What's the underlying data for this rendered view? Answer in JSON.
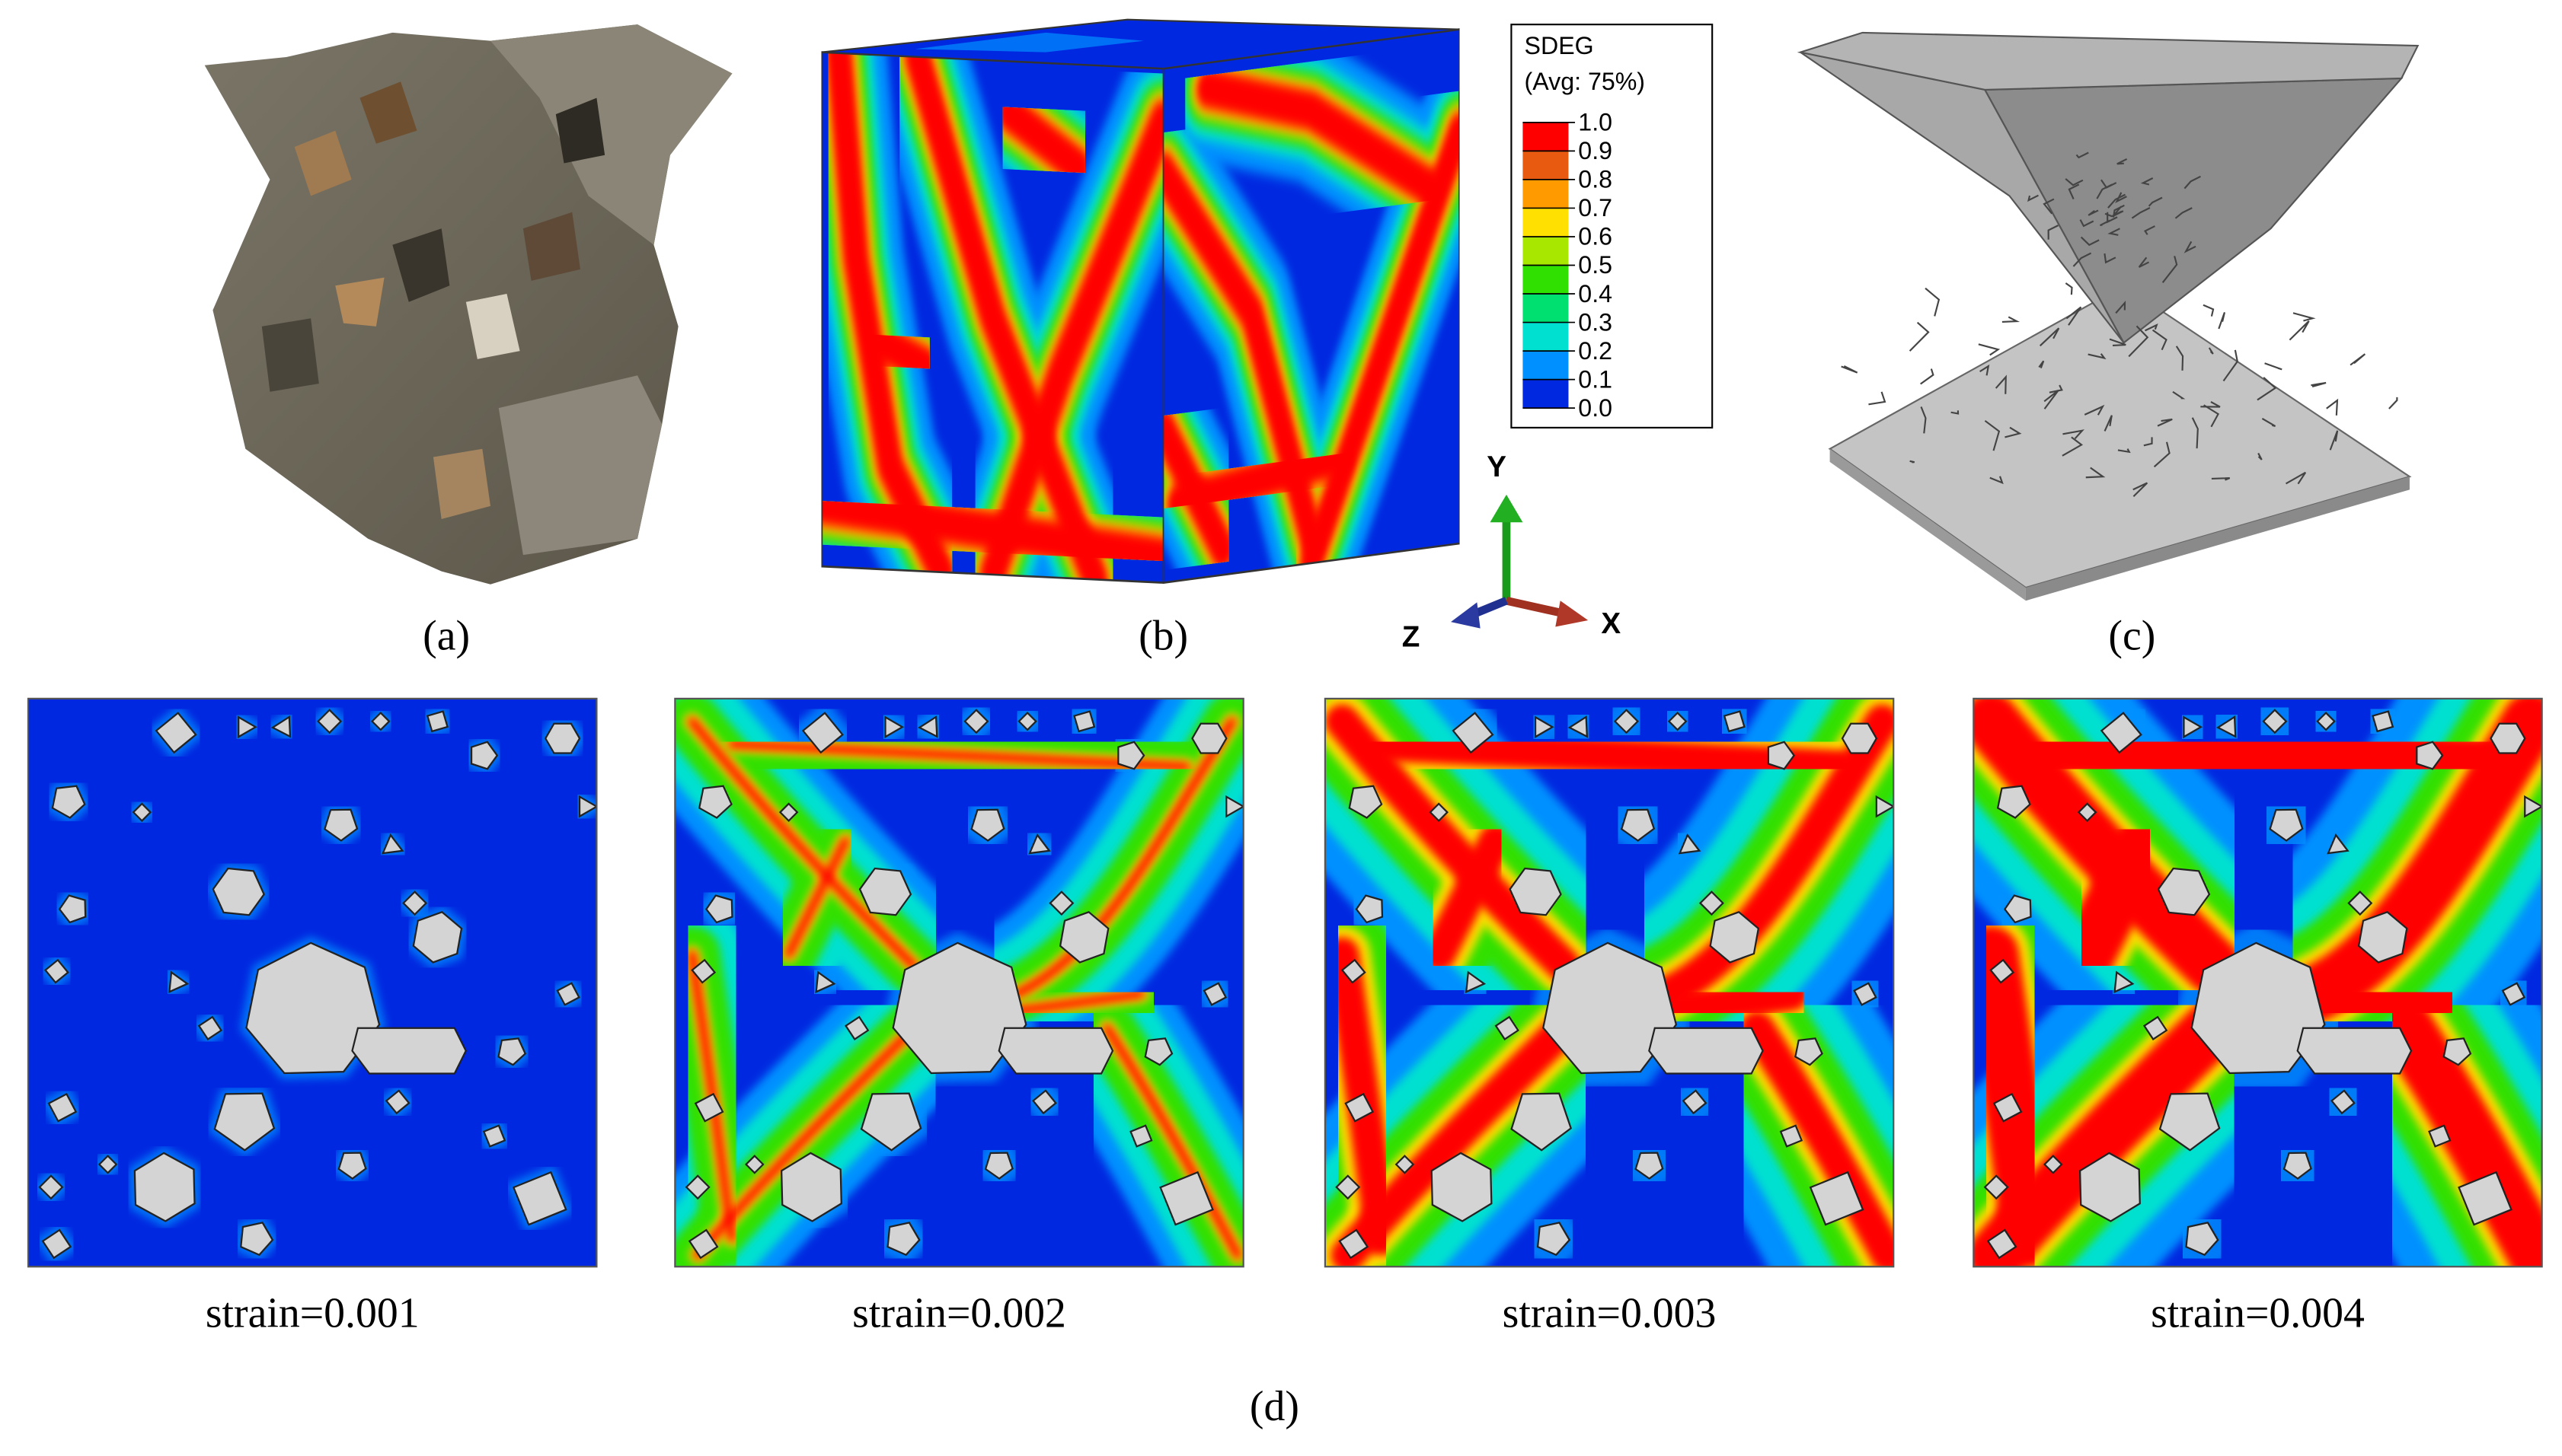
{
  "captions": [
    "(a)",
    "(b)",
    "(c)",
    "(d)"
  ],
  "legend": {
    "title": "SDEG",
    "subtitle": "(Avg: 75%)",
    "labels": [
      "1.0",
      "0.9",
      "0.8",
      "0.7",
      "0.6",
      "0.5",
      "0.4",
      "0.3",
      "0.2",
      "0.1",
      "0.0"
    ],
    "colors": [
      "#ff0000",
      "#e85a10",
      "#ff9a00",
      "#ffe000",
      "#a8e800",
      "#30e000",
      "#00e070",
      "#00e0d0",
      "#0090ff",
      "#0028e0"
    ]
  },
  "axes": {
    "y": "Y",
    "x": "X",
    "z": "Z"
  },
  "strain_panels": [
    "strain=0.001",
    "strain=0.002",
    "strain=0.003",
    "strain=0.004"
  ]
}
